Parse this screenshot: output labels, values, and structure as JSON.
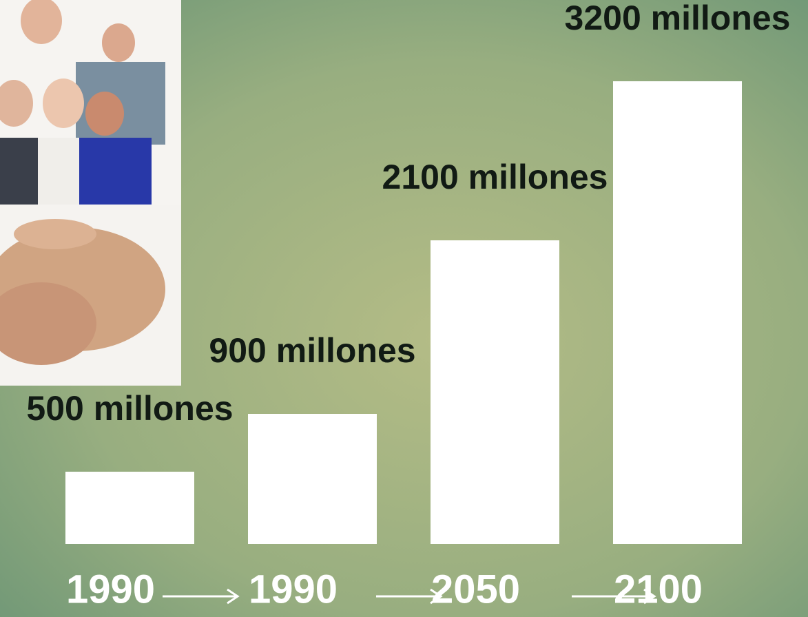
{
  "chart_data": {
    "type": "bar",
    "categories": [
      "1990",
      "1990",
      "2050",
      "2100"
    ],
    "values": [
      500,
      900,
      2100,
      3200
    ],
    "value_labels": [
      "500 millones",
      "900 millones",
      "2100 millones",
      "3200 millones"
    ],
    "color": "#ffffff"
  }
}
